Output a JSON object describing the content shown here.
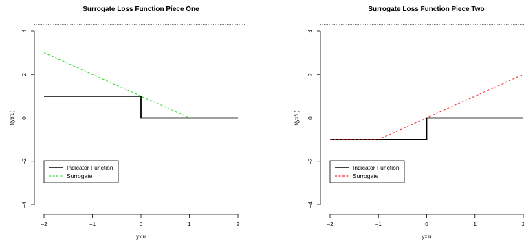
{
  "chart_data": [
    {
      "type": "line",
      "title": "Surrogate Loss Function Piece One",
      "xlabel": "yx'u",
      "ylabel": "f(yx'u)",
      "xlim": [
        -2,
        2
      ],
      "ylim": [
        -4,
        4
      ],
      "x_ticks": [
        -2,
        -1,
        0,
        1,
        2
      ],
      "y_ticks": [
        -4,
        -2,
        0,
        2,
        4
      ],
      "x_tick_labels": [
        "−2",
        "−1",
        "0",
        "1",
        "2"
      ],
      "y_tick_labels": [
        "−4",
        "−2",
        "0",
        "2",
        "4"
      ],
      "grid": false,
      "legend_position": "bottom-left",
      "series": [
        {
          "name": "Indicator Function",
          "color": "#000000",
          "style": "solid",
          "points": [
            [
              -2,
              1
            ],
            [
              0,
              1
            ],
            [
              0,
              0
            ],
            [
              2,
              0
            ]
          ]
        },
        {
          "name": "Surrogate",
          "color": "#33dd33",
          "style": "dashed",
          "points": [
            [
              -2,
              3
            ],
            [
              1,
              0
            ],
            [
              2,
              0
            ]
          ]
        }
      ],
      "reference_lines": [
        {
          "axis": "y",
          "value": 4.3,
          "style": "dotted",
          "color": "#555555"
        }
      ]
    },
    {
      "type": "line",
      "title": "Surrogate Loss Function Piece Two",
      "xlabel": "yx'u",
      "ylabel": "f(yx'u)",
      "xlim": [
        -2,
        2
      ],
      "ylim": [
        -4,
        4
      ],
      "x_ticks": [
        -2,
        -1,
        0,
        1,
        2
      ],
      "y_ticks": [
        -4,
        -2,
        0,
        2,
        4
      ],
      "x_tick_labels": [
        "−2",
        "−1",
        "0",
        "1",
        "2"
      ],
      "y_tick_labels": [
        "−4",
        "−2",
        "0",
        "2",
        "4"
      ],
      "grid": false,
      "legend_position": "bottom-left",
      "series": [
        {
          "name": "Indicator Function",
          "color": "#000000",
          "style": "solid",
          "points": [
            [
              -2,
              -1
            ],
            [
              0,
              -1
            ],
            [
              0,
              0
            ],
            [
              2,
              0
            ]
          ]
        },
        {
          "name": "Surrogate",
          "color": "#ee3333",
          "style": "dashed",
          "points": [
            [
              -2,
              -1
            ],
            [
              -1,
              -1
            ],
            [
              2,
              2
            ]
          ]
        }
      ],
      "reference_lines": [
        {
          "axis": "y",
          "value": 4.3,
          "style": "dotted",
          "color": "#555555"
        }
      ]
    }
  ]
}
